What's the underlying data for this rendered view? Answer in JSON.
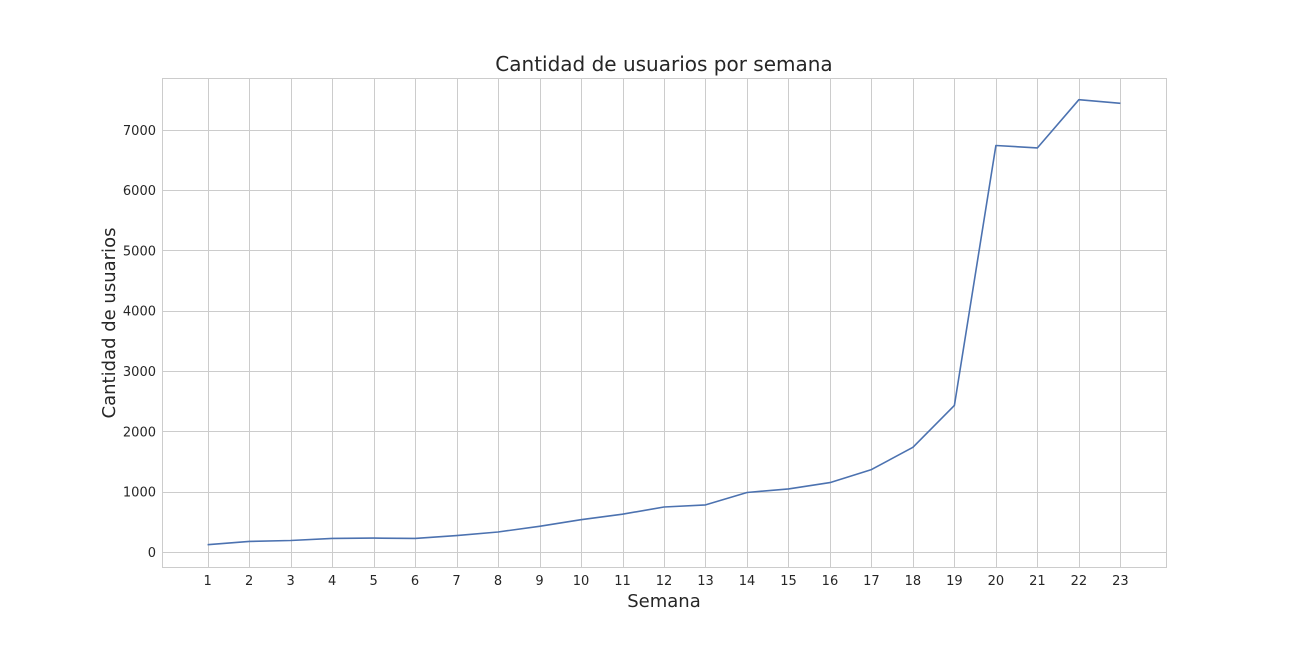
{
  "chart_data": {
    "type": "line",
    "title": "Cantidad de usuarios por semana",
    "xlabel": "Semana",
    "ylabel": "Cantidad de usuarios",
    "x": [
      1,
      2,
      3,
      4,
      5,
      6,
      7,
      8,
      9,
      10,
      11,
      12,
      13,
      14,
      15,
      16,
      17,
      18,
      19,
      20,
      21,
      22,
      23
    ],
    "series": [
      {
        "values": [
          120,
          175,
          190,
          225,
          230,
          225,
          270,
          330,
          425,
          535,
          625,
          745,
          780,
          985,
          1045,
          1150,
          1365,
          1735,
          2430,
          6740,
          6700,
          7500,
          7440
        ],
        "color": "#4c72b0"
      }
    ],
    "xlim": [
      -0.1,
      24.1
    ],
    "ylim": [
      -250,
      7860
    ],
    "yticks": [
      0,
      1000,
      2000,
      3000,
      4000,
      5000,
      6000,
      7000
    ],
    "grid": true,
    "legend": "none"
  }
}
